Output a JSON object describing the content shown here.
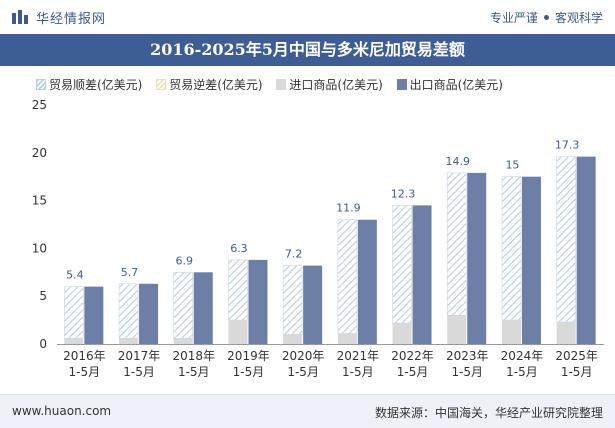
{
  "header": {
    "logo_text": "华经情报网",
    "slogan_left": "专业严谨",
    "slogan_right": "客观科学"
  },
  "footer": {
    "url": "www.huaon.com",
    "source": "数据来源：中国海关，华经产业研究院整理"
  },
  "colors": {
    "title_bg": "#3e5d94",
    "export_bar": "#6d7fa6",
    "import_bar": "#d9d9d9",
    "surplus_hatch": "#b9cee0",
    "deficit_hatch": "#ece6c4"
  },
  "chart_data": {
    "type": "bar",
    "title": "2016-2025年5月中国与多米尼加贸易差额",
    "legend": [
      "贸易顺差(亿美元)",
      "贸易逆差(亿美元)",
      "进口商品(亿美元)",
      "出口商品(亿美元)"
    ],
    "legend_placement": "top",
    "categories": [
      [
        "2016年",
        "1-5月"
      ],
      [
        "2017年",
        "1-5月"
      ],
      [
        "2018年",
        "1-5月"
      ],
      [
        "2019年",
        "1-5月"
      ],
      [
        "2020年",
        "1-5月"
      ],
      [
        "2021年",
        "1-5月"
      ],
      [
        "2022年",
        "1-5月"
      ],
      [
        "2023年",
        "1-5月"
      ],
      [
        "2024年",
        "1-5月"
      ],
      [
        "2025年",
        "1-5月"
      ]
    ],
    "series": [
      {
        "name": "贸易顺差(亿美元)",
        "values": [
          5.4,
          5.7,
          6.9,
          6.3,
          7.2,
          11.9,
          12.3,
          14.9,
          15,
          17.3
        ]
      },
      {
        "name": "进口商品(亿美元)",
        "values": [
          0.6,
          0.6,
          0.6,
          2.5,
          1.0,
          1.1,
          2.2,
          3.0,
          2.5,
          2.3
        ]
      },
      {
        "name": "出口商品(亿美元)",
        "values": [
          6.0,
          6.3,
          7.5,
          8.8,
          8.2,
          13.0,
          14.5,
          17.9,
          17.5,
          19.6
        ]
      }
    ],
    "data_labels": [
      "5.4",
      "5.7",
      "6.9",
      "6.3",
      "7.2",
      "11.9",
      "12.3",
      "14.9",
      "15",
      "17.3"
    ],
    "y_ticks": [
      "0",
      "5",
      "10",
      "15",
      "20",
      "25"
    ],
    "ylim": [
      0,
      25
    ],
    "grid": false
  }
}
